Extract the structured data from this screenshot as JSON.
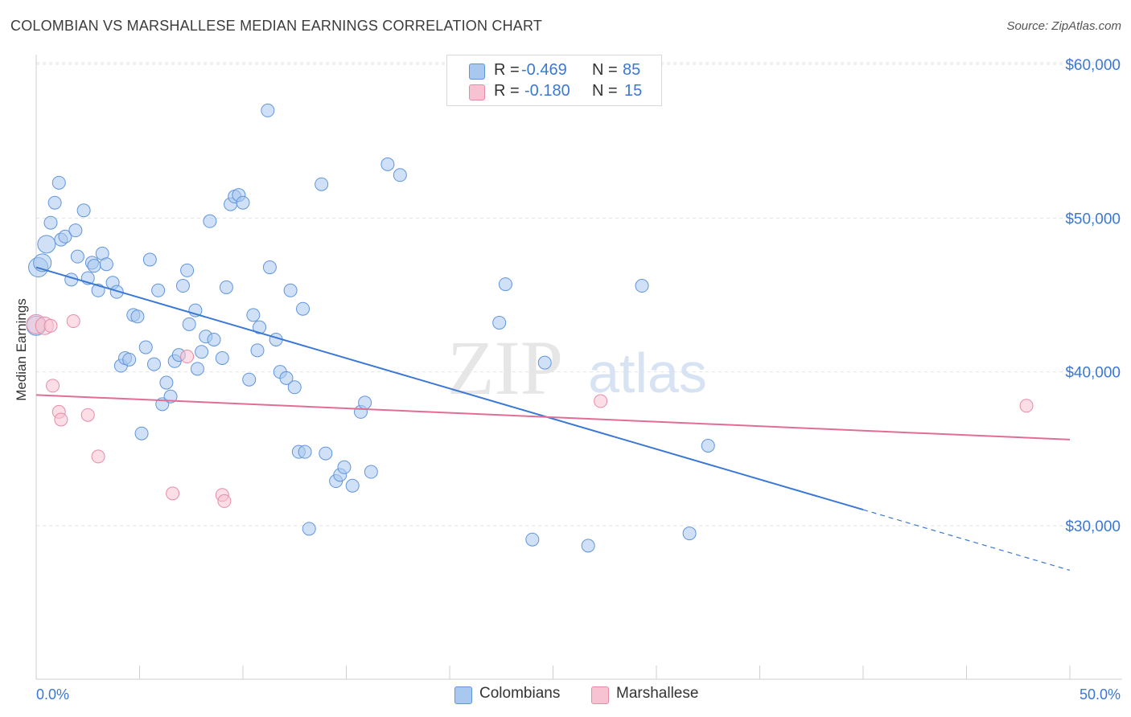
{
  "title": "COLOMBIAN VS MARSHALLESE MEDIAN EARNINGS CORRELATION CHART",
  "source": "Source: ZipAtlas.com",
  "watermark": {
    "zip": "ZIP",
    "atlas": "atlas"
  },
  "legend": {
    "rows": [
      {
        "r_label": "R =",
        "r_value": "-0.469",
        "n_label": "N =",
        "n_value": "85",
        "color": "#a9c8f0",
        "border": "#5f95dc"
      },
      {
        "r_label": "R =",
        "r_value": "-0.180",
        "n_label": "N =",
        "n_value": "15",
        "color": "#f7c3d2",
        "border": "#e88aa6"
      }
    ]
  },
  "bottom_legend": [
    {
      "label": "Colombians",
      "color": "#a9c8f0",
      "border": "#5f95dc"
    },
    {
      "label": "Marshallese",
      "color": "#f7c3d2",
      "border": "#e88aa6"
    }
  ],
  "chart_data": {
    "type": "scatter",
    "xlabel": "",
    "ylabel": "Median Earnings",
    "xlim": [
      0,
      50
    ],
    "ylim": [
      20000,
      61000
    ],
    "x_tick_labels": [
      "0.0%",
      "50.0%"
    ],
    "y_ticks": [
      30000,
      40000,
      50000,
      60000
    ],
    "y_tick_labels": [
      "$30,000",
      "$40,000",
      "$50,000",
      "$60,000"
    ],
    "grid": true,
    "colors": {
      "blue": "#3a78d4",
      "pink": "#e26d94",
      "axis_text": "#3a78d4"
    },
    "series": [
      {
        "name": "Colombians",
        "color": "#a9c8f0",
        "edge": "#5f95dc",
        "points": [
          [
            0.1,
            46800
          ],
          [
            0.3,
            47100
          ],
          [
            0.5,
            48300
          ],
          [
            0.7,
            49700
          ],
          [
            0.9,
            51000
          ],
          [
            1.1,
            52300
          ],
          [
            1.2,
            48600
          ],
          [
            1.4,
            48800
          ],
          [
            1.7,
            46000
          ],
          [
            1.9,
            49200
          ],
          [
            2.0,
            47500
          ],
          [
            2.3,
            50500
          ],
          [
            2.5,
            46100
          ],
          [
            2.7,
            47100
          ],
          [
            2.8,
            46900
          ],
          [
            3.0,
            45300
          ],
          [
            3.2,
            47700
          ],
          [
            3.4,
            47000
          ],
          [
            3.7,
            45800
          ],
          [
            3.9,
            45200
          ],
          [
            4.1,
            40400
          ],
          [
            4.3,
            40900
          ],
          [
            4.5,
            40800
          ],
          [
            4.7,
            43700
          ],
          [
            4.9,
            43600
          ],
          [
            5.1,
            36000
          ],
          [
            5.3,
            41600
          ],
          [
            5.5,
            47300
          ],
          [
            5.7,
            40500
          ],
          [
            5.9,
            45300
          ],
          [
            6.1,
            37900
          ],
          [
            6.3,
            39300
          ],
          [
            6.5,
            38400
          ],
          [
            6.7,
            40700
          ],
          [
            6.9,
            41100
          ],
          [
            7.1,
            45600
          ],
          [
            7.3,
            46600
          ],
          [
            7.4,
            43100
          ],
          [
            7.7,
            44000
          ],
          [
            7.8,
            40200
          ],
          [
            8.0,
            41300
          ],
          [
            8.2,
            42300
          ],
          [
            8.4,
            49800
          ],
          [
            8.6,
            42100
          ],
          [
            9.0,
            40900
          ],
          [
            9.2,
            45500
          ],
          [
            9.4,
            50900
          ],
          [
            9.6,
            51400
          ],
          [
            9.8,
            51500
          ],
          [
            10.0,
            51000
          ],
          [
            10.3,
            39500
          ],
          [
            10.5,
            43700
          ],
          [
            10.7,
            41400
          ],
          [
            10.8,
            42900
          ],
          [
            11.3,
            46800
          ],
          [
            11.2,
            57000
          ],
          [
            11.6,
            42100
          ],
          [
            11.8,
            40000
          ],
          [
            12.1,
            39600
          ],
          [
            12.3,
            45300
          ],
          [
            12.5,
            39000
          ],
          [
            12.7,
            34800
          ],
          [
            12.9,
            44100
          ],
          [
            13.0,
            34800
          ],
          [
            13.2,
            29800
          ],
          [
            13.8,
            52200
          ],
          [
            14.0,
            34700
          ],
          [
            14.5,
            32900
          ],
          [
            14.7,
            33300
          ],
          [
            14.9,
            33800
          ],
          [
            15.3,
            32600
          ],
          [
            15.7,
            37400
          ],
          [
            15.9,
            38000
          ],
          [
            16.2,
            33500
          ],
          [
            17.0,
            53500
          ],
          [
            17.6,
            52800
          ],
          [
            22.4,
            43200
          ],
          [
            22.7,
            45700
          ],
          [
            24.0,
            29100
          ],
          [
            24.6,
            40600
          ],
          [
            26.7,
            28700
          ],
          [
            29.3,
            45600
          ],
          [
            31.6,
            29500
          ],
          [
            32.5,
            35200
          ],
          [
            0.0,
            43000
          ]
        ]
      },
      {
        "name": "Marshallese",
        "color": "#f7c3d2",
        "edge": "#e88aa6",
        "points": [
          [
            0.0,
            43100
          ],
          [
            0.4,
            43000
          ],
          [
            0.7,
            43000
          ],
          [
            0.8,
            39100
          ],
          [
            1.1,
            37400
          ],
          [
            1.2,
            36900
          ],
          [
            1.8,
            43300
          ],
          [
            2.5,
            37200
          ],
          [
            3.0,
            34500
          ],
          [
            6.6,
            32100
          ],
          [
            7.3,
            41000
          ],
          [
            9.0,
            32000
          ],
          [
            9.1,
            31600
          ],
          [
            27.3,
            38100
          ],
          [
            47.9,
            37800
          ]
        ]
      }
    ],
    "trendlines": [
      {
        "series": "Colombians",
        "x_start": 0,
        "y_start": 46800,
        "x_solid_end": 40,
        "x_dash_end": 50,
        "y_end": 27100
      },
      {
        "series": "Marshallese",
        "x_start": 0,
        "y_start": 38500,
        "x_end": 50,
        "y_end": 35600
      }
    ]
  }
}
